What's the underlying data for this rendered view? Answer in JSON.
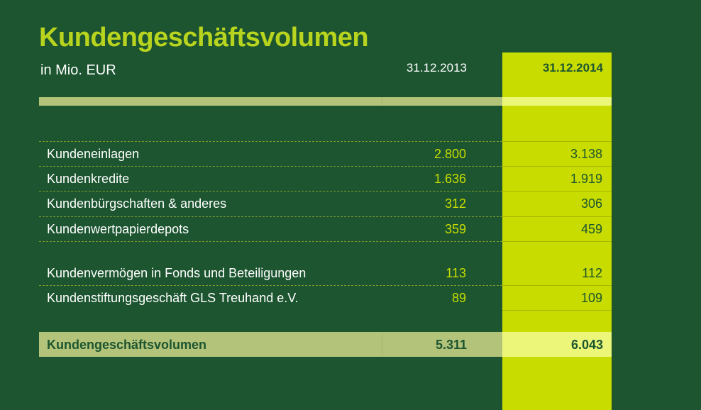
{
  "header": {
    "title": "Kundengeschäftsvolumen",
    "subtitle": "in Mio. EUR",
    "col_2013": "31.12.2013",
    "col_2014": "31.12.2014"
  },
  "rows": [
    {
      "label": "Kundeneinlagen",
      "v2013": "2.800",
      "v2014": "3.138"
    },
    {
      "label": "Kundenkredite",
      "v2013": "1.636",
      "v2014": "1.919"
    },
    {
      "label": "Kundenbürgschaften & anderes",
      "v2013": "312",
      "v2014": "306"
    },
    {
      "label": "Kundenwertpapierdepots",
      "v2013": "359",
      "v2014": "459"
    },
    {
      "label": "Kundenvermögen in Fonds und Beteiligungen",
      "v2013": "113",
      "v2014": "112"
    },
    {
      "label": "Kundenstiftungsgeschäft GLS Treuhand e.V.",
      "v2013": "89",
      "v2014": "109"
    }
  ],
  "total": {
    "label": "Kundengeschäftsvolumen",
    "v2013": "5.311",
    "v2014": "6.043"
  },
  "colors": {
    "background": "#1c5530",
    "accent": "#c8dc00",
    "title": "#b8d41e",
    "bar": "#b3c47a",
    "bar_highlight": "#ecf77a"
  }
}
